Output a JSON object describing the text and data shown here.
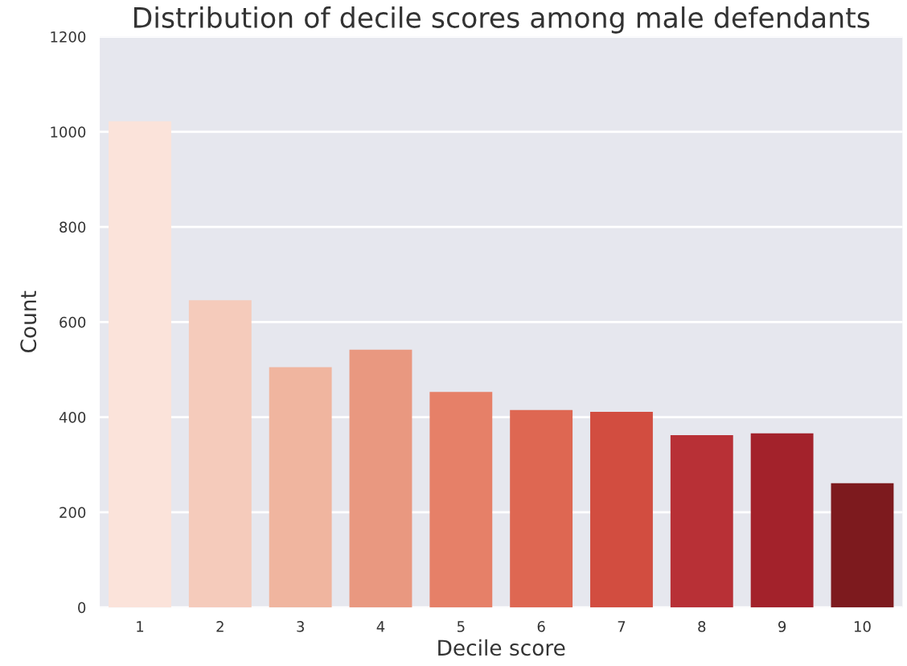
{
  "chart_data": {
    "type": "bar",
    "title": "Distribution of decile scores among male defendants",
    "xlabel": "Decile score",
    "ylabel": "Count",
    "categories": [
      "1",
      "2",
      "3",
      "4",
      "5",
      "6",
      "7",
      "8",
      "9",
      "10"
    ],
    "values": [
      1022,
      646,
      505,
      542,
      453,
      415,
      411,
      362,
      366,
      261
    ],
    "colors": [
      "#fbe3da",
      "#f5cbbb",
      "#f0b59f",
      "#e99880",
      "#e68068",
      "#de6752",
      "#d24d40",
      "#b83036",
      "#a3222b",
      "#7d1a1e"
    ],
    "ylim": [
      0,
      1200
    ],
    "yticks": [
      0,
      200,
      400,
      600,
      800,
      1000,
      1200
    ],
    "grid": "y"
  }
}
